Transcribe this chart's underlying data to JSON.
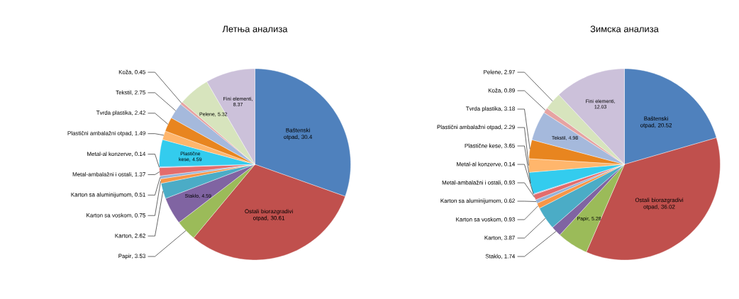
{
  "chart_data": [
    {
      "type": "pie",
      "title": "Летња анализа",
      "categories": [
        "Baštenski otpad",
        "Ostali biorazgradivi otpad",
        "Papir",
        "Staklo",
        "Karton",
        "Karton sa voskom",
        "Karton sa aluminijumom",
        "Metal-ambalažni i ostali",
        "Metal-al konzerve",
        "Plastične kese",
        "Plastični ambalažni otpad",
        "Tvrda plastika",
        "Tekstil",
        "Koža",
        "Pelene",
        "Fini elementi"
      ],
      "values": [
        30.4,
        30.61,
        3.53,
        4.59,
        2.62,
        0.75,
        0.51,
        1.37,
        0.14,
        4.59,
        1.49,
        2.42,
        2.75,
        0.45,
        5.32,
        8.37
      ],
      "value_labels": [
        ", 30.4",
        ", 30.61",
        ", 3.53",
        ", 4.59",
        ", 2.62",
        ", 0.75",
        ", 0.51",
        ", 1.37",
        ", 0.14",
        ", 4.59",
        ", 1.49",
        ", 2.42",
        ", 2.75",
        ", 0.45",
        ", 5.32",
        ", 8.37"
      ],
      "colors": [
        "#4f81bd",
        "#c0504d",
        "#9bbb59",
        "#8064a2",
        "#4bacc6",
        "#f79646",
        "#95b3d7",
        "#e46c6b",
        "#b7a2d0",
        "#33ccee",
        "#ffb66c",
        "#e8851f",
        "#a5b9dc",
        "#e6a3a2",
        "#d7e4bd",
        "#ccc1da"
      ]
    },
    {
      "type": "pie",
      "title": "Зимска анализа",
      "categories": [
        "Baštenski otpad",
        "Ostali biorazgradivi otpad",
        "Papir",
        "Staklo",
        "Karton",
        "Karton sa voskom",
        "Karton sa aluminijumom",
        "Metal-ambalažni i ostali",
        "Metal-al konzerve",
        "Plastične kese",
        "Plastični ambalažni otpad",
        "Tvrda plastika",
        "Tekstil",
        "Koža",
        "Pelene",
        "Fini elementi"
      ],
      "values": [
        20.52,
        36.02,
        5.28,
        1.74,
        3.87,
        0.93,
        0.62,
        0.93,
        0.14,
        3.65,
        2.29,
        3.18,
        4.98,
        0.89,
        2.97,
        12.03
      ],
      "value_labels": [
        ", 20.52",
        ", 36.02",
        ", 5.28",
        ", 1.74",
        ", 3.87",
        ", 0.93",
        ", 0.62",
        ", 0.93",
        ", 0.14",
        ", 3.65",
        ", 2.29",
        ", 3.18",
        ", 4.98",
        ", 0.89",
        ", 2.97",
        ", 12.03"
      ],
      "colors": [
        "#4f81bd",
        "#c0504d",
        "#9bbb59",
        "#8064a2",
        "#4bacc6",
        "#f79646",
        "#95b3d7",
        "#e46c6b",
        "#b7a2d0",
        "#33ccee",
        "#ffb66c",
        "#e8851f",
        "#a5b9dc",
        "#e6a3a2",
        "#d7e4bd",
        "#ccc1da"
      ]
    }
  ]
}
